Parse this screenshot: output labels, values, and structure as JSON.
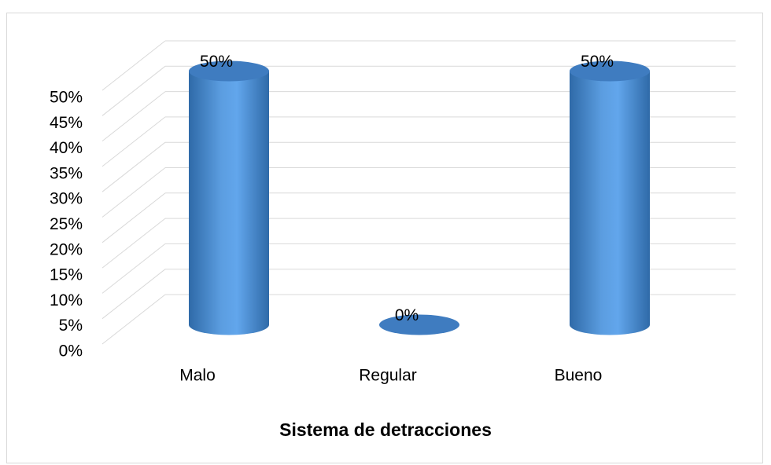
{
  "chart_data": {
    "type": "bar3d",
    "title": "Sistema de detracciones",
    "categories": [
      "Malo",
      "Regular",
      "Bueno"
    ],
    "values": [
      50,
      0,
      50
    ],
    "value_labels": [
      "50%",
      "0%",
      "50%"
    ],
    "color": "#5b9de0",
    "ylim": [
      0,
      50
    ],
    "yticks": [
      {
        "value": 0,
        "label": "0%"
      },
      {
        "value": 5,
        "label": "5%"
      },
      {
        "value": 10,
        "label": "10%"
      },
      {
        "value": 15,
        "label": "15%"
      },
      {
        "value": 20,
        "label": "20%"
      },
      {
        "value": 25,
        "label": "25%"
      },
      {
        "value": 30,
        "label": "30%"
      },
      {
        "value": 35,
        "label": "35%"
      },
      {
        "value": 40,
        "label": "40%"
      },
      {
        "value": 45,
        "label": "45%"
      },
      {
        "value": 50,
        "label": "50%"
      }
    ],
    "grid": true
  }
}
